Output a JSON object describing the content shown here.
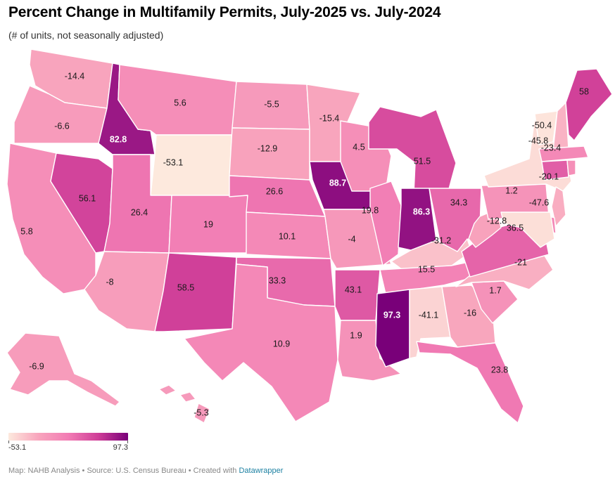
{
  "header": {
    "title": "Percent Change in Multifamily Permits, July-2025 vs. July-2024",
    "subtitle": "(# of units, not seasonally adjusted)"
  },
  "legend": {
    "min_label": "-53.1",
    "max_label": "97.3",
    "min": -53.1,
    "max": 97.3,
    "colors": [
      "#fde9dd",
      "#f8a5bd",
      "#f27cb4",
      "#cf3e98",
      "#790079"
    ]
  },
  "footer": {
    "prefix": "Map: NAHB Analysis • Source: U.S. Census Bureau • Created with ",
    "link": "Datawrapper"
  },
  "map_data": {
    "type": "choropleth",
    "region": "United States",
    "metric": "Percent change in multifamily permits",
    "states": [
      {
        "id": "WA",
        "value": -14.4,
        "label": "-14.4"
      },
      {
        "id": "OR",
        "value": -6.6,
        "label": "-6.6"
      },
      {
        "id": "CA",
        "value": 5.8,
        "label": "5.8"
      },
      {
        "id": "ID",
        "value": 82.8,
        "label": "82.8"
      },
      {
        "id": "NV",
        "value": 56.1,
        "label": "56.1"
      },
      {
        "id": "MT",
        "value": 5.6,
        "label": "5.6"
      },
      {
        "id": "WY",
        "value": -53.1,
        "label": "-53.1"
      },
      {
        "id": "UT",
        "value": 26.4,
        "label": "26.4"
      },
      {
        "id": "AZ",
        "value": -8,
        "label": "-8"
      },
      {
        "id": "CO",
        "value": 19,
        "label": "19"
      },
      {
        "id": "NM",
        "value": 58.5,
        "label": "58.5"
      },
      {
        "id": "ND",
        "value": -5.5,
        "label": "-5.5"
      },
      {
        "id": "SD",
        "value": -12.9,
        "label": "-12.9"
      },
      {
        "id": "NE",
        "value": 26.6,
        "label": "26.6"
      },
      {
        "id": "KS",
        "value": 10.1,
        "label": "10.1"
      },
      {
        "id": "OK",
        "value": 33.3,
        "label": "33.3"
      },
      {
        "id": "TX",
        "value": 10.9,
        "label": "10.9"
      },
      {
        "id": "MN",
        "value": -15.4,
        "label": "-15.4"
      },
      {
        "id": "IA",
        "value": 88.7,
        "label": "88.7"
      },
      {
        "id": "MO",
        "value": -4,
        "label": "-4"
      },
      {
        "id": "AR",
        "value": 43.1,
        "label": "43.1"
      },
      {
        "id": "LA",
        "value": 1.9,
        "label": "1.9"
      },
      {
        "id": "WI",
        "value": 4.5,
        "label": "4.5"
      },
      {
        "id": "IL",
        "value": 19.8,
        "label": "19.8"
      },
      {
        "id": "MI",
        "value": 51.5,
        "label": "51.5"
      },
      {
        "id": "IN",
        "value": 86.3,
        "label": "86.3"
      },
      {
        "id": "OH",
        "value": 34.3,
        "label": "34.3"
      },
      {
        "id": "KY",
        "value": -31.2,
        "label": "-31.2"
      },
      {
        "id": "TN",
        "value": 15.5,
        "label": "15.5"
      },
      {
        "id": "MS",
        "value": 97.3,
        "label": "97.3"
      },
      {
        "id": "AL",
        "value": -41.1,
        "label": "-41.1"
      },
      {
        "id": "GA",
        "value": -16,
        "label": "-16"
      },
      {
        "id": "FL",
        "value": 23.8,
        "label": "23.8"
      },
      {
        "id": "SC",
        "value": 1.7,
        "label": "1.7"
      },
      {
        "id": "NC",
        "value": -21,
        "label": "-21"
      },
      {
        "id": "VA",
        "value": 36.5,
        "label": "36.5"
      },
      {
        "id": "WV",
        "value": -12.8,
        "label": "-12.8"
      },
      {
        "id": "PA",
        "value": 1.2,
        "label": "1.2"
      },
      {
        "id": "NY",
        "value": -45.8,
        "label": "-45.8"
      },
      {
        "id": "VT",
        "value": -50.4,
        "label": "-50.4"
      },
      {
        "id": "NH",
        "value": -23.4,
        "label": "-23.4"
      },
      {
        "id": "ME",
        "value": 58,
        "label": "58"
      },
      {
        "id": "MA",
        "value": 10,
        "label": ""
      },
      {
        "id": "CT",
        "value": 40,
        "label": ""
      },
      {
        "id": "RI",
        "value": 5,
        "label": ""
      },
      {
        "id": "NJ",
        "value": -20.1,
        "label": "-20.1"
      },
      {
        "id": "DE",
        "value": 10,
        "label": ""
      },
      {
        "id": "MD",
        "value": -47.6,
        "label": "-47.6"
      },
      {
        "id": "AK",
        "value": -6.9,
        "label": "-6.9"
      },
      {
        "id": "HI",
        "value": -5.3,
        "label": "-5.3"
      }
    ]
  }
}
